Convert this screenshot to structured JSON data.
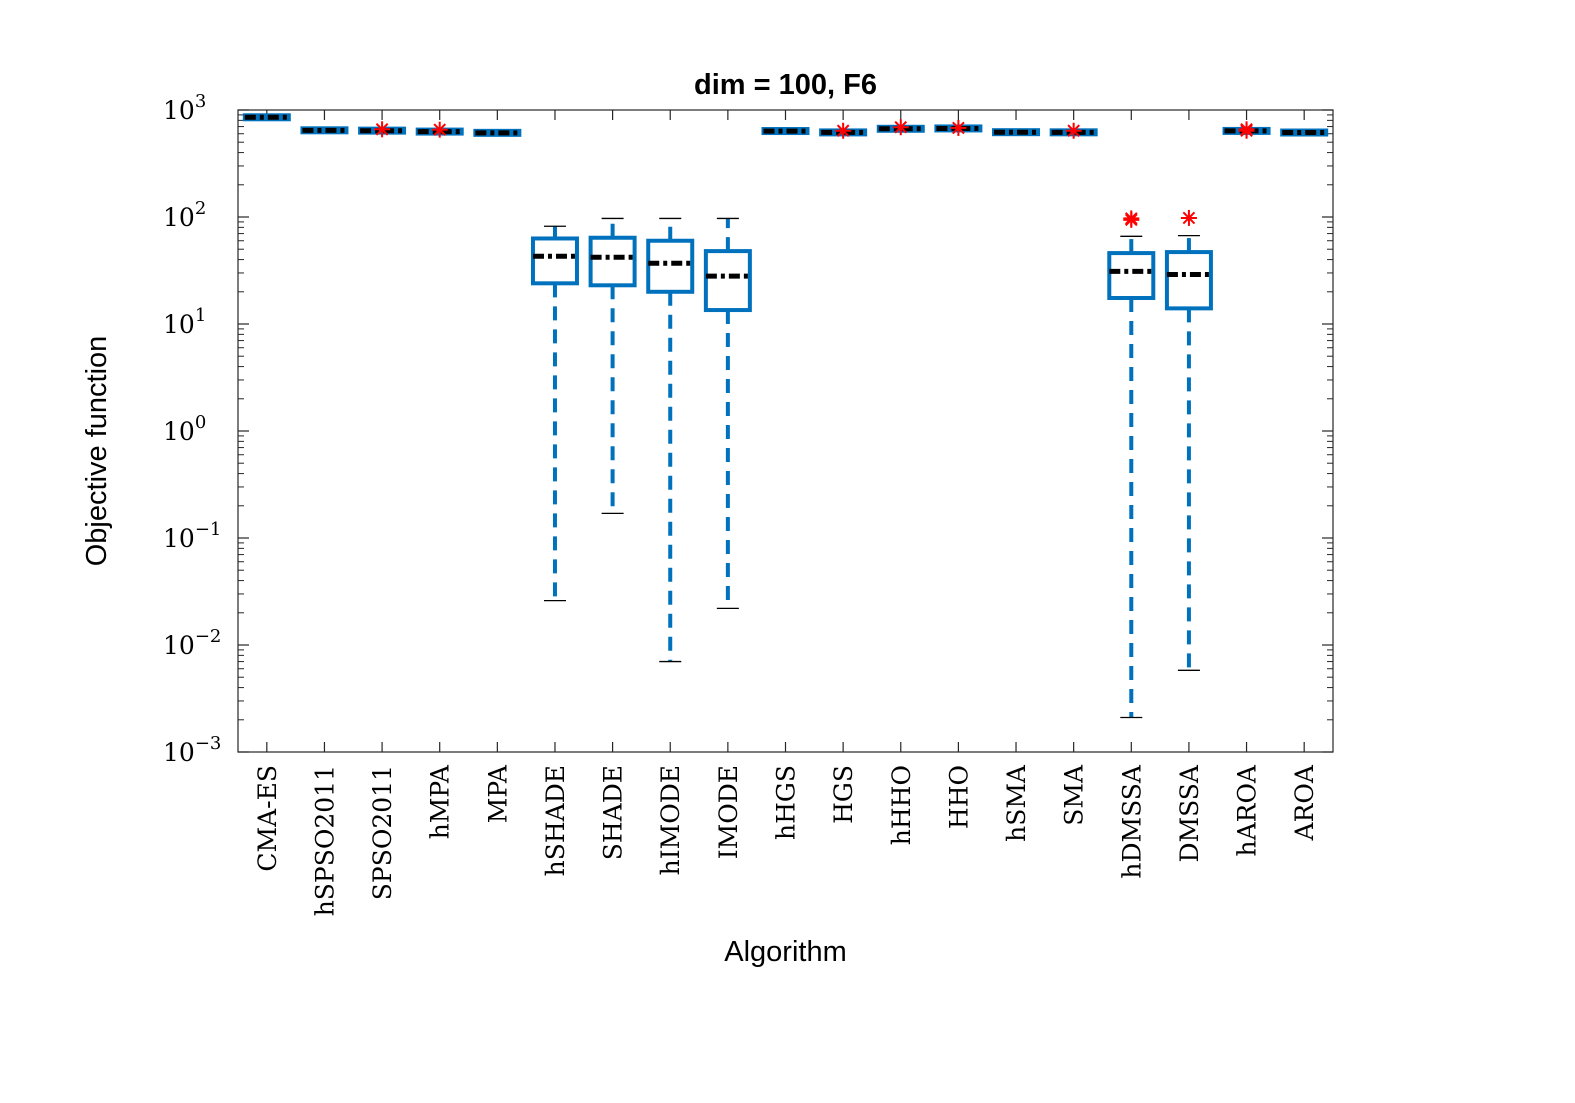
{
  "chart_data": {
    "type": "boxplot",
    "title": "dim = 100,  F6",
    "xlabel": "Algorithm",
    "ylabel": "Objective function",
    "yscale": "log",
    "ylim": [
      0.001,
      1000
    ],
    "yticks": [
      {
        "base": "10",
        "exp": "3"
      },
      {
        "base": "10",
        "exp": "2"
      },
      {
        "base": "10",
        "exp": "1"
      },
      {
        "base": "10",
        "exp": "0"
      },
      {
        "base": "10",
        "exp": "−1"
      },
      {
        "base": "10",
        "exp": "−2"
      },
      {
        "base": "10",
        "exp": "−3"
      }
    ],
    "categories": [
      "CMA-ES",
      "hSPSO2011",
      "SPSO2011",
      "hMPA",
      "MPA",
      "hSHADE",
      "SHADE",
      "hIMODE",
      "IMODE",
      "hHGS",
      "HGS",
      "hHHO",
      "HHO",
      "hSMA",
      "SMA",
      "hDMSSA",
      "DMSSA",
      "hAROA",
      "AROA"
    ],
    "boxes": [
      {
        "name": "CMA-ES",
        "whisker_low": 830,
        "q1": 840,
        "median": 855,
        "q3": 870,
        "whisker_high": 880,
        "outliers": []
      },
      {
        "name": "hSPSO2011",
        "whisker_low": 635,
        "q1": 640,
        "median": 645,
        "q3": 652,
        "whisker_high": 658,
        "outliers": []
      },
      {
        "name": "SPSO2011",
        "whisker_low": 630,
        "q1": 635,
        "median": 640,
        "q3": 648,
        "whisker_high": 655,
        "outliers": [
          660
        ]
      },
      {
        "name": "hMPA",
        "whisker_low": 618,
        "q1": 622,
        "median": 628,
        "q3": 635,
        "whisker_high": 640,
        "outliers": [
          655
        ]
      },
      {
        "name": "MPA",
        "whisker_low": 600,
        "q1": 605,
        "median": 612,
        "q3": 618,
        "whisker_high": 622,
        "outliers": []
      },
      {
        "name": "hSHADE",
        "whisker_low": 0.026,
        "q1": 24,
        "median": 43,
        "q3": 63,
        "whisker_high": 82,
        "outliers": []
      },
      {
        "name": "SHADE",
        "whisker_low": 0.17,
        "q1": 23,
        "median": 42,
        "q3": 64,
        "whisker_high": 97,
        "outliers": []
      },
      {
        "name": "hIMODE",
        "whisker_low": 0.007,
        "q1": 20,
        "median": 37,
        "q3": 60,
        "whisker_high": 97,
        "outliers": []
      },
      {
        "name": "IMODE",
        "whisker_low": 0.022,
        "q1": 13.5,
        "median": 28,
        "q3": 48,
        "whisker_high": 97,
        "outliers": []
      },
      {
        "name": "hHGS",
        "whisker_low": 625,
        "q1": 630,
        "median": 635,
        "q3": 642,
        "whisker_high": 648,
        "outliers": []
      },
      {
        "name": "HGS",
        "whisker_low": 605,
        "q1": 610,
        "median": 618,
        "q3": 625,
        "whisker_high": 630,
        "outliers": [
          640
        ]
      },
      {
        "name": "hHHO",
        "whisker_low": 655,
        "q1": 660,
        "median": 668,
        "q3": 675,
        "whisker_high": 682,
        "outliers": [
          690
        ]
      },
      {
        "name": "HHO",
        "whisker_low": 660,
        "q1": 665,
        "median": 672,
        "q3": 680,
        "whisker_high": 686,
        "outliers": [
          680
        ]
      },
      {
        "name": "hSMA",
        "whisker_low": 610,
        "q1": 615,
        "median": 620,
        "q3": 626,
        "whisker_high": 632,
        "outliers": []
      },
      {
        "name": "SMA",
        "whisker_low": 605,
        "q1": 612,
        "median": 618,
        "q3": 625,
        "whisker_high": 632,
        "outliers": [
          640
        ]
      },
      {
        "name": "hDMSSA",
        "whisker_low": 0.0021,
        "q1": 17.5,
        "median": 31,
        "q3": 46,
        "whisker_high": 66,
        "outliers": [
          94,
          97
        ]
      },
      {
        "name": "DMSSA",
        "whisker_low": 0.0058,
        "q1": 14,
        "median": 29,
        "q3": 47,
        "whisker_high": 67,
        "outliers": [
          98
        ]
      },
      {
        "name": "hAROA",
        "whisker_low": 625,
        "q1": 630,
        "median": 638,
        "q3": 645,
        "whisker_high": 652,
        "outliers": [
          640,
          660
        ]
      },
      {
        "name": "AROA",
        "whisker_low": 605,
        "q1": 610,
        "median": 616,
        "q3": 622,
        "whisker_high": 628,
        "outliers": []
      }
    ],
    "colors": {
      "box": "#0072BD",
      "median": "#000000",
      "outlier": "#FF0000",
      "axis": "#262626"
    }
  }
}
